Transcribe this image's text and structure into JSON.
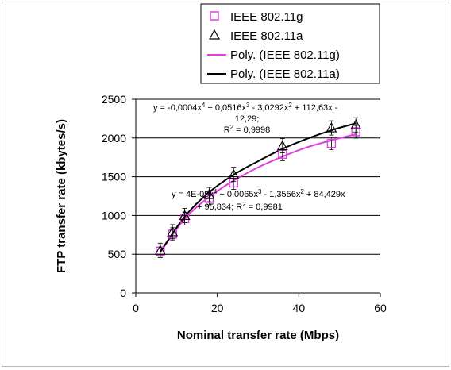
{
  "chart_data": {
    "type": "scatter",
    "xlabel": "Nominal transfer rate (Mbps)",
    "ylabel": "FTP transfer rate (kbytes/s)",
    "xlim": [
      0,
      60
    ],
    "ylim": [
      0,
      2500
    ],
    "x_ticks": [
      "0",
      "20",
      "40",
      "60"
    ],
    "y_ticks": [
      "0",
      "500",
      "1000",
      "1500",
      "2000",
      "2500"
    ],
    "grid": "horizontal",
    "legend_position": "top",
    "series": [
      {
        "name": "IEEE 802.11g",
        "marker": "square",
        "color": "#e040e0",
        "x": [
          6,
          9,
          12,
          18,
          24,
          36,
          48,
          54
        ],
        "y": [
          540,
          760,
          960,
          1220,
          1420,
          1790,
          1930,
          2080
        ]
      },
      {
        "name": "IEEE 802.11a",
        "marker": "triangle",
        "color": "#000000",
        "x": [
          6,
          9,
          12,
          18,
          24,
          36,
          48,
          54
        ],
        "y": [
          550,
          790,
          1000,
          1270,
          1530,
          1900,
          2130,
          2170
        ]
      }
    ],
    "trendlines": [
      {
        "name": "Poly. (IEEE 802.11g)",
        "color": "#e040e0",
        "x_range": [
          6,
          54
        ],
        "y_at_x": {
          "6": 528,
          "12": 955,
          "18": 1240,
          "24": 1450,
          "30": 1620,
          "36": 1760,
          "42": 1880,
          "48": 1970,
          "54": 2050
        }
      },
      {
        "name": "Poly. (IEEE 802.11a)",
        "color": "#000000",
        "x_range": [
          6,
          54
        ],
        "y_at_x": {
          "6": 530,
          "12": 985,
          "18": 1300,
          "24": 1525,
          "30": 1700,
          "36": 1860,
          "42": 1990,
          "48": 2100,
          "54": 2190
        }
      }
    ],
    "annotations": {
      "eq_a_line1": "y = -0,0004x",
      "eq_a_line1_sup": "4",
      "eq_a_line1_rest": " + 0,0516x",
      "eq_a_line1_sup2": "3",
      "eq_a_line1_rest2": " - 3,0292x",
      "eq_a_line1_sup3": "2",
      "eq_a_line1_rest3": " + 112,63x -",
      "eq_a_line2": "12,29;",
      "eq_a_line3": "R",
      "eq_a_line3_sup": "2",
      "eq_a_line3_rest": " = 0,9998",
      "eq_g_line1": "y = 4E-05x",
      "eq_g_line1_sup": "4",
      "eq_g_line1_rest": " + 0,0065x",
      "eq_g_line1_sup2": "3",
      "eq_g_line1_rest2": " - 1,3556x",
      "eq_g_line1_sup3": "2",
      "eq_g_line1_rest3": " + 84,429x",
      "eq_g_line2": "+ 95,834; R",
      "eq_g_line2_sup": "2",
      "eq_g_line2_rest": " = 0,9981"
    }
  }
}
